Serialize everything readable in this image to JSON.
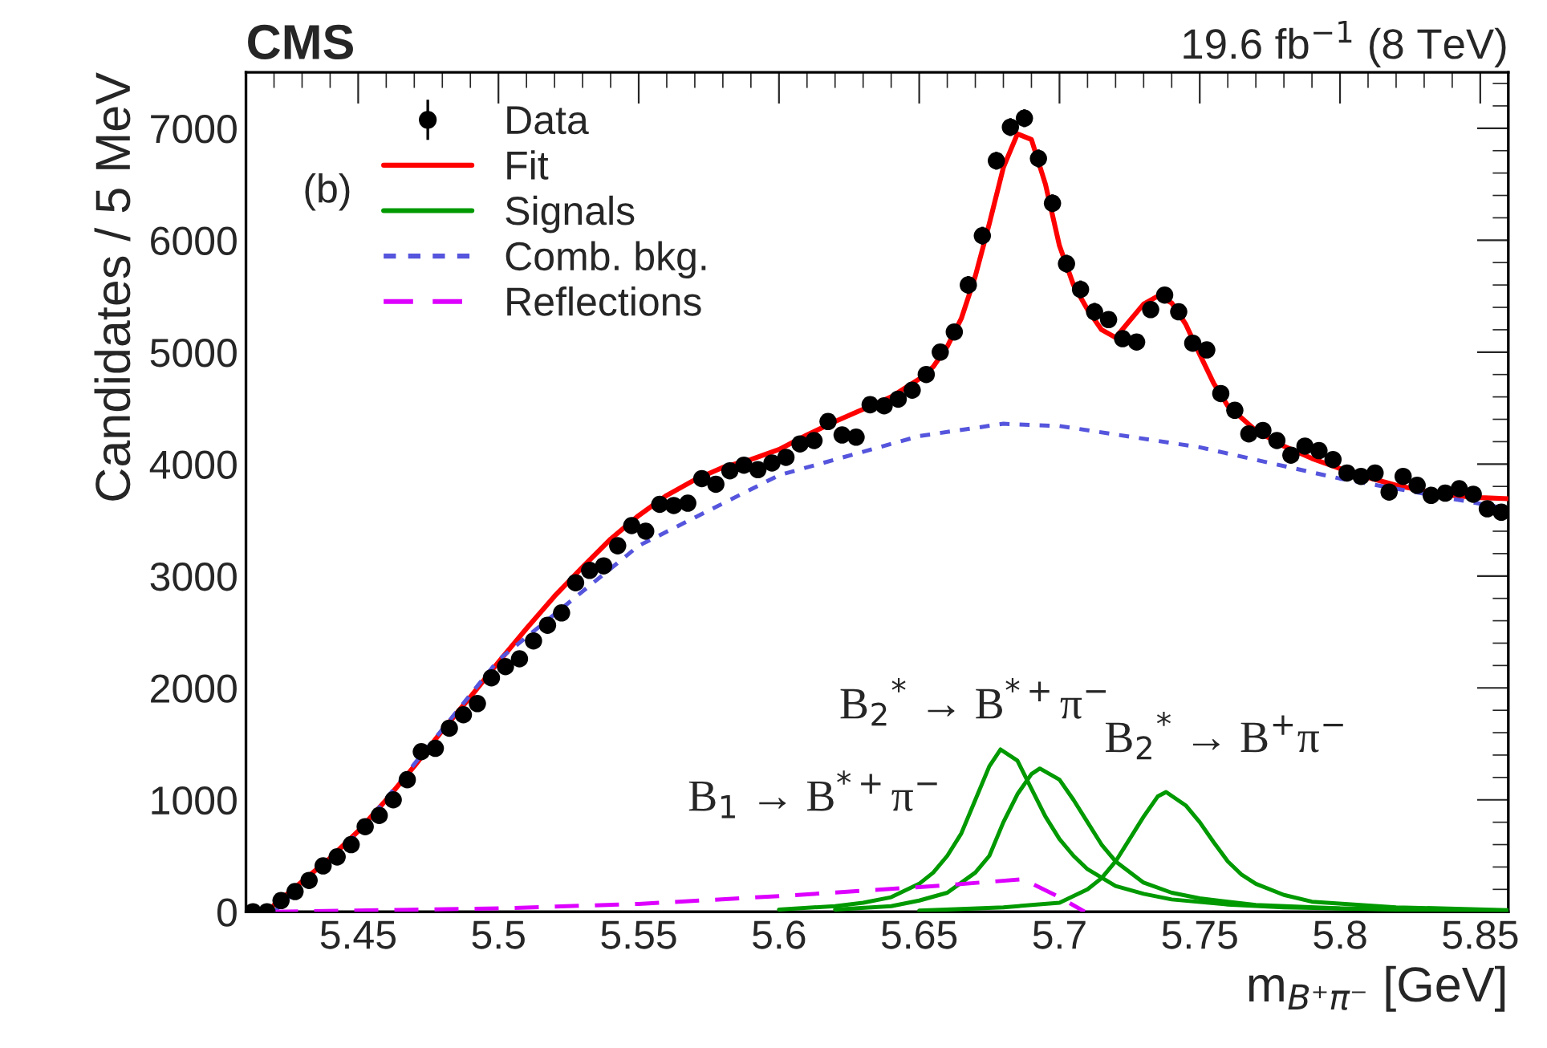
{
  "chart_data": {
    "type": "scatter",
    "title": "CMS",
    "subtitle": "19.6 fb$^{−1}$ (8 TeV)",
    "xlabel": "m$_{B⁺π⁻}$ [GeV]",
    "ylabel": "Candidates / 5 MeV",
    "xlim": [
      5.41,
      5.86
    ],
    "xticks": [
      5.45,
      5.5,
      5.55,
      5.6,
      5.65,
      5.7,
      5.75,
      5.8,
      5.85
    ],
    "ylim": [
      0,
      7500
    ],
    "yticks": [
      0,
      1000,
      2000,
      3000,
      4000,
      5000,
      6000,
      7000
    ],
    "grid": false,
    "legend": "top left",
    "annotations": [
      "(b)",
      "B$_{1}$ → B$^{*+}$π$^{−}$",
      "B$_{2}$$^{*}$ → B$^{*+}$π$^{−}$",
      "B$_{2}$$^{*}$ → B$^{+}$π$^{−}$"
    ],
    "series": [
      {
        "name": "Data",
        "color": "#000000",
        "marker": "circle",
        "x": [
          5.4125,
          5.4175,
          5.4225,
          5.4275,
          5.4325,
          5.4375,
          5.4425,
          5.4475,
          5.4525,
          5.4575,
          5.4625,
          5.4675,
          5.4725,
          5.4775,
          5.4825,
          5.4875,
          5.4925,
          5.4975,
          5.5025,
          5.5075,
          5.5125,
          5.5175,
          5.5225,
          5.5275,
          5.5325,
          5.5375,
          5.5425,
          5.5475,
          5.5525,
          5.5575,
          5.5625,
          5.5675,
          5.5725,
          5.5775,
          5.5825,
          5.5875,
          5.5925,
          5.5975,
          5.6025,
          5.6075,
          5.6125,
          5.6175,
          5.6225,
          5.6275,
          5.6325,
          5.6375,
          5.6425,
          5.6475,
          5.6525,
          5.6575,
          5.6625,
          5.6675,
          5.6725,
          5.6775,
          5.6825,
          5.6875,
          5.6925,
          5.6975,
          5.7025,
          5.7075,
          5.7125,
          5.7175,
          5.7225,
          5.7275,
          5.7325,
          5.7375,
          5.7425,
          5.7475,
          5.7525,
          5.7575,
          5.7625,
          5.7675,
          5.7725,
          5.7775,
          5.7825,
          5.7875,
          5.7925,
          5.7975,
          5.8025,
          5.8075,
          5.8125,
          5.8175,
          5.8225,
          5.8275,
          5.8325,
          5.8375,
          5.8425,
          5.8475,
          5.8525,
          5.8575
        ],
        "values": [
          0,
          0,
          100,
          180,
          280,
          410,
          490,
          600,
          760,
          860,
          1000,
          1180,
          1430,
          1460,
          1640,
          1760,
          1860,
          2090,
          2190,
          2260,
          2420,
          2560,
          2670,
          2940,
          3050,
          3090,
          3270,
          3450,
          3400,
          3640,
          3630,
          3650,
          3870,
          3820,
          3940,
          3990,
          3950,
          4010,
          4060,
          4180,
          4210,
          4380,
          4260,
          4240,
          4530,
          4520,
          4580,
          4660,
          4800,
          5000,
          5180,
          5600,
          6040,
          6710,
          7010,
          7090,
          6730,
          6330,
          5790,
          5560,
          5360,
          5290,
          5120,
          5090,
          5380,
          5510,
          5360,
          5080,
          5020,
          4630,
          4480,
          4270,
          4300,
          4210,
          4080,
          4160,
          4120,
          4040,
          3920,
          3890,
          3920,
          3750,
          3890,
          3810,
          3720,
          3740,
          3780,
          3730,
          3600,
          3570
        ],
        "errors": [
          null,
          null,
          25,
          25,
          25,
          25,
          25,
          25,
          25,
          25,
          40,
          40,
          40,
          40,
          40,
          40,
          40,
          40,
          40,
          40,
          55,
          55,
          55,
          55,
          55,
          55,
          55,
          55,
          55,
          55,
          55,
          55,
          55,
          55,
          55,
          55,
          65,
          65,
          65,
          65,
          65,
          65,
          65,
          65,
          65,
          65,
          65,
          65,
          65,
          65,
          65,
          80,
          80,
          80,
          80,
          80,
          80,
          80,
          80,
          80,
          80,
          70,
          70,
          70,
          70,
          70,
          70,
          70,
          70,
          70,
          70,
          70,
          70,
          70,
          70,
          70,
          70,
          70,
          70,
          70,
          70,
          70,
          70,
          70,
          70,
          70,
          70,
          70,
          70,
          70
        ]
      },
      {
        "name": "Fit",
        "type": "line",
        "color": "#ff0000",
        "line_style": "solid",
        "x": [
          5.42,
          5.43,
          5.44,
          5.45,
          5.46,
          5.47,
          5.48,
          5.49,
          5.5,
          5.51,
          5.52,
          5.53,
          5.54,
          5.55,
          5.56,
          5.57,
          5.58,
          5.59,
          5.6,
          5.61,
          5.62,
          5.63,
          5.64,
          5.65,
          5.655,
          5.66,
          5.665,
          5.67,
          5.675,
          5.68,
          5.685,
          5.69,
          5.695,
          5.7,
          5.705,
          5.71,
          5.715,
          5.72,
          5.725,
          5.73,
          5.735,
          5.74,
          5.745,
          5.75,
          5.755,
          5.76,
          5.77,
          5.78,
          5.79,
          5.8,
          5.81,
          5.82,
          5.83,
          5.84,
          5.85,
          5.86
        ],
        "values": [
          60,
          270,
          480,
          720,
          1000,
          1300,
          1620,
          1920,
          2230,
          2530,
          2820,
          3080,
          3330,
          3540,
          3720,
          3860,
          3970,
          4040,
          4130,
          4260,
          4380,
          4490,
          4600,
          4760,
          4870,
          5050,
          5300,
          5680,
          6150,
          6650,
          6950,
          6900,
          6500,
          5950,
          5600,
          5380,
          5200,
          5130,
          5280,
          5430,
          5500,
          5440,
          5250,
          4980,
          4720,
          4520,
          4300,
          4160,
          4050,
          3960,
          3880,
          3810,
          3760,
          3720,
          3700,
          3690
        ]
      },
      {
        "name": "Signals",
        "type": "line",
        "color": "#009900",
        "line_style": "solid",
        "x": [
          5.6,
          5.62,
          5.63,
          5.64,
          5.65,
          5.655,
          5.66,
          5.665,
          5.67,
          5.675,
          5.679,
          5.685,
          5.69,
          5.695,
          5.7,
          5.705,
          5.71,
          5.72,
          5.73,
          5.74,
          5.76,
          5.78,
          5.82,
          5.86
        ],
        "values": [
          20,
          50,
          80,
          130,
          250,
          350,
          500,
          700,
          1000,
          1300,
          1450,
          1350,
          1100,
          850,
          650,
          500,
          380,
          230,
          160,
          110,
          65,
          40,
          20,
          10
        ]
      },
      {
        "type": "line",
        "color": "#009900",
        "line_style": "solid",
        "x": [
          5.62,
          5.64,
          5.65,
          5.66,
          5.67,
          5.675,
          5.68,
          5.685,
          5.69,
          5.693,
          5.7,
          5.705,
          5.71,
          5.715,
          5.72,
          5.73,
          5.74,
          5.75,
          5.77,
          5.8,
          5.86
        ],
        "values": [
          20,
          50,
          100,
          170,
          350,
          500,
          800,
          1050,
          1230,
          1280,
          1180,
          1000,
          800,
          600,
          450,
          260,
          170,
          120,
          60,
          30,
          10
        ]
      },
      {
        "type": "line",
        "color": "#009900",
        "line_style": "solid",
        "x": [
          5.65,
          5.68,
          5.7,
          5.71,
          5.715,
          5.72,
          5.725,
          5.73,
          5.735,
          5.738,
          5.745,
          5.75,
          5.755,
          5.76,
          5.765,
          5.77,
          5.78,
          5.79,
          5.82,
          5.86
        ],
        "values": [
          10,
          40,
          80,
          200,
          300,
          450,
          650,
          850,
          1030,
          1070,
          950,
          800,
          620,
          450,
          330,
          250,
          150,
          90,
          40,
          15
        ]
      },
      {
        "name": "Comb. bkg.",
        "type": "line",
        "color": "#5555dd",
        "line_style": "dotted",
        "x": [
          5.42,
          5.45,
          5.5,
          5.55,
          5.6,
          5.65,
          5.68,
          5.7,
          5.75,
          5.8,
          5.86
        ],
        "values": [
          0,
          700,
          2250,
          3270,
          3900,
          4250,
          4360,
          4340,
          4150,
          3870,
          3600
        ]
      },
      {
        "name": "Reflections",
        "type": "line",
        "color": "#dd00ff",
        "line_style": "dashed",
        "x": [
          5.42,
          5.5,
          5.55,
          5.6,
          5.65,
          5.687,
          5.7,
          5.709
        ],
        "values": [
          0,
          30,
          70,
          140,
          220,
          290,
          130,
          0
        ]
      }
    ]
  }
}
